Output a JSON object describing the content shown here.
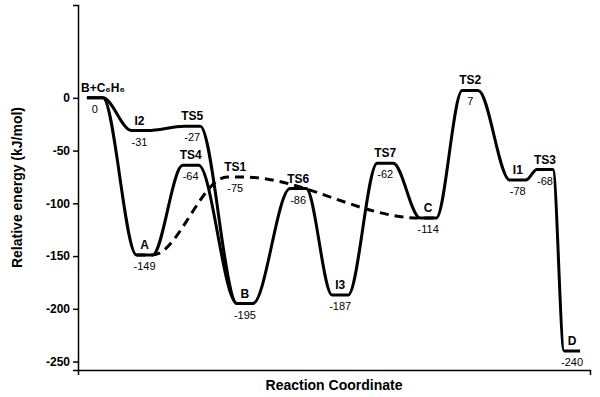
{
  "chart_data": {
    "type": "line",
    "x_label": "Reaction Coordinate",
    "y_label": "Relative energy (kJ/mol)",
    "xlim": [
      0,
      100
    ],
    "xticks": [],
    "ylim": [
      -258,
      88
    ],
    "yticks": [
      -250,
      -200,
      -150,
      -100,
      -50,
      0
    ],
    "tick_labels": "y",
    "data_labels": true,
    "series": [
      {
        "color": "#000000",
        "line_style": "solid",
        "x": [
          3.3,
          13,
          22,
          32.6,
          43,
          51.2,
          60,
          68.4,
          76.6,
          85.9,
          91.2,
          96.5
        ],
        "values": [
          0,
          -149,
          -64,
          -195,
          -86,
          -187,
          -62,
          -114,
          7,
          -78,
          -68,
          -240
        ],
        "labels": [
          "B+C₆H₆",
          "A",
          "TS4",
          "B",
          "TS6",
          "I3",
          "TS7",
          "C",
          "TS2",
          "I1",
          "TS3",
          "D"
        ]
      },
      {
        "color": "#000000",
        "line_style": "solid",
        "x": [
          3.3,
          12,
          22.3,
          32.6
        ],
        "values": [
          0,
          -31,
          -27,
          -195
        ],
        "labels": [
          null,
          "I2",
          "TS5",
          null
        ]
      },
      {
        "color": "#000000",
        "line_style": "dashed",
        "x": [
          13,
          30.7,
          68.4
        ],
        "values": [
          -149,
          -75,
          -114
        ],
        "labels": [
          null,
          "TS1",
          null
        ]
      }
    ]
  }
}
